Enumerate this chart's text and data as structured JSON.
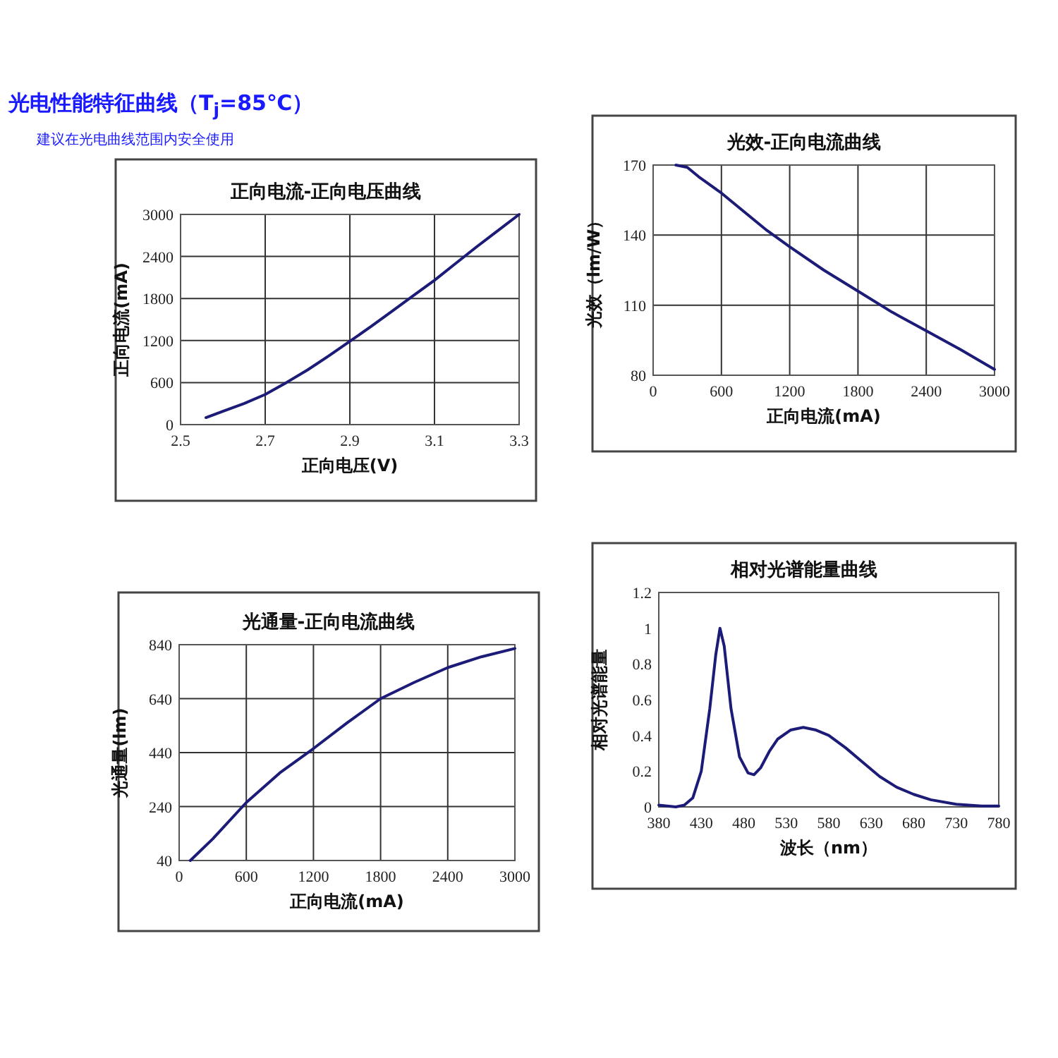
{
  "chart_data": [
    {
      "type": "other",
      "title": "光电性能特征曲线（T$_{j}$=85℃）",
      "subtitle": "建议在光电曲线范围内安全使用"
    },
    {
      "type": "line",
      "title": "正向电流-正向电压曲线",
      "xlabel": "正向电压(V)",
      "ylabel": "正向电流(mA)",
      "xlim": [
        2.5,
        3.3
      ],
      "ylim": [
        0,
        3000
      ],
      "xticks": [
        2.5,
        2.7,
        2.9,
        3.1,
        3.3
      ],
      "yticks": [
        0,
        600,
        1200,
        1800,
        2400,
        3000
      ],
      "grid": true,
      "x": [
        2.56,
        2.6,
        2.65,
        2.7,
        2.75,
        2.8,
        2.85,
        2.9,
        2.95,
        3.0,
        3.05,
        3.1,
        3.15,
        3.2,
        3.25,
        3.3
      ],
      "series": [
        {
          "color": "#1c1c78",
          "values": [
            100,
            190,
            300,
            430,
            600,
            780,
            980,
            1190,
            1400,
            1620,
            1840,
            2060,
            2300,
            2540,
            2770,
            3000
          ]
        }
      ]
    },
    {
      "type": "line",
      "title": "光效-正向电流曲线",
      "xlabel": "正向电流(mA)",
      "ylabel": "光效（lm/W）",
      "xlim": [
        0,
        3000
      ],
      "ylim": [
        80,
        170
      ],
      "xticks": [
        0,
        600,
        1200,
        1800,
        2400,
        3000
      ],
      "yticks": [
        80,
        110,
        140,
        170
      ],
      "grid": true,
      "x": [
        200,
        300,
        400,
        600,
        800,
        1000,
        1200,
        1500,
        1800,
        2100,
        2400,
        2700,
        3000
      ],
      "series": [
        {
          "color": "#1c1c78",
          "values": [
            170,
            169,
            165,
            158,
            150,
            142,
            135,
            125,
            116,
            107,
            99,
            91,
            82.5
          ]
        }
      ]
    },
    {
      "type": "line",
      "title": "光通量-正向电流曲线",
      "xlabel": "正向电流(mA)",
      "ylabel": "光通量(lm)",
      "xlim": [
        0,
        3000
      ],
      "ylim": [
        40,
        840
      ],
      "xticks": [
        0,
        600,
        1200,
        1800,
        2400,
        3000
      ],
      "yticks": [
        40,
        240,
        440,
        640,
        840
      ],
      "grid": true,
      "x": [
        100,
        300,
        600,
        900,
        1200,
        1500,
        1800,
        2100,
        2400,
        2700,
        3000
      ],
      "series": [
        {
          "color": "#1c1c78",
          "values": [
            40,
            120,
            255,
            365,
            455,
            550,
            640,
            700,
            755,
            795,
            826
          ]
        }
      ]
    },
    {
      "type": "line",
      "title": "相对光谱能量曲线",
      "xlabel": "波长（nm）",
      "ylabel": "相对光谱能量",
      "xlim": [
        380,
        780
      ],
      "ylim": [
        0,
        1.2
      ],
      "xticks": [
        380,
        430,
        480,
        530,
        580,
        630,
        680,
        730,
        780
      ],
      "yticks": [
        0,
        0.2,
        0.4,
        0.6,
        0.8,
        1,
        1.2
      ],
      "grid": false,
      "x": [
        380,
        400,
        410,
        420,
        430,
        440,
        447,
        452,
        457,
        465,
        475,
        485,
        492,
        500,
        510,
        520,
        535,
        550,
        565,
        580,
        600,
        620,
        640,
        660,
        680,
        700,
        730,
        760,
        780
      ],
      "series": [
        {
          "color": "#1c1c78",
          "values": [
            0.01,
            0,
            0.01,
            0.05,
            0.2,
            0.55,
            0.85,
            1.0,
            0.9,
            0.55,
            0.28,
            0.19,
            0.18,
            0.22,
            0.31,
            0.38,
            0.43,
            0.445,
            0.43,
            0.4,
            0.33,
            0.25,
            0.17,
            0.11,
            0.07,
            0.04,
            0.015,
            0.005,
            0.005
          ]
        }
      ]
    }
  ]
}
